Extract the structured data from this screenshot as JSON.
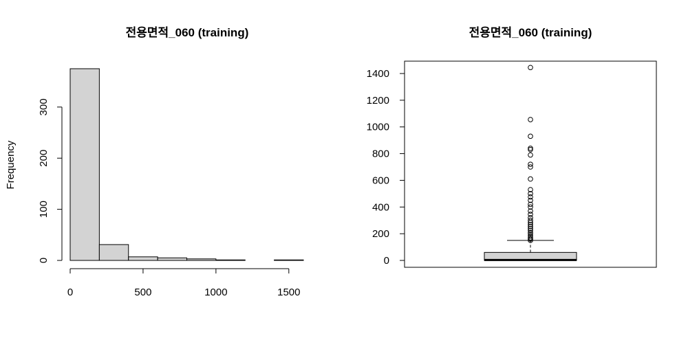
{
  "chart_data": [
    {
      "type": "bar",
      "subtype": "histogram",
      "title": "전용면적_060 (training)",
      "xlabel": "",
      "ylabel": "Frequency",
      "bin_edges": [
        0,
        200,
        400,
        600,
        800,
        1000,
        1200,
        1400,
        1600
      ],
      "values": [
        375,
        31,
        7,
        5,
        3,
        1,
        0,
        1
      ],
      "xlim": [
        0,
        1600
      ],
      "ylim": [
        0,
        375
      ],
      "x_ticks": [
        0,
        500,
        1000,
        1500
      ],
      "y_ticks": [
        0,
        100,
        200,
        300
      ],
      "bar_color": "#d3d3d3",
      "grid": false
    },
    {
      "type": "boxplot",
      "title": "전용면적_060 (training)",
      "xlabel": "",
      "ylabel": "",
      "ylim": [
        0,
        1450
      ],
      "y_ticks": [
        0,
        200,
        400,
        600,
        800,
        1000,
        1200,
        1400
      ],
      "stats": {
        "lower_whisker": 0,
        "q1": 0,
        "median": 3,
        "q3": 60,
        "upper_whisker": 150
      },
      "outliers": [
        1445,
        1055,
        930,
        840,
        830,
        790,
        720,
        700,
        610,
        530,
        500,
        475,
        450,
        420,
        400,
        370,
        345,
        320,
        300,
        285,
        270,
        255,
        240,
        225,
        210,
        200,
        185,
        170,
        160,
        150
      ],
      "box_color": "#d3d3d3",
      "grid": false
    }
  ]
}
